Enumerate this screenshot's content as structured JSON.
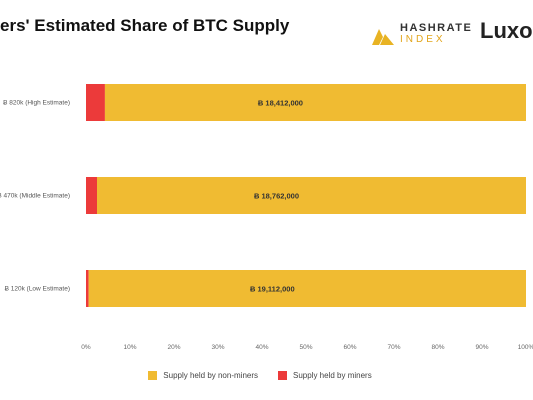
{
  "title": "ers' Estimated Share of BTC Supply",
  "logo": {
    "text_top": "HASHRATE",
    "text_bottom": "INDEX",
    "mark_color": "#e8b323"
  },
  "brand": "Luxo",
  "chart_data": {
    "type": "bar",
    "orientation": "horizontal",
    "stacked": true,
    "categories": [
      "Ƀ 820k (High Estimate)",
      "Ƀ 470k (Middle Estimate)",
      "Ƀ 120k (Low Estimate)"
    ],
    "series": [
      {
        "name": "Supply held by miners",
        "color": "#ec3a3a",
        "values": [
          4.3,
          2.5,
          0.6
        ]
      },
      {
        "name": "Supply held by non-miners",
        "color": "#f0bb32",
        "values": [
          95.7,
          97.5,
          99.4
        ]
      }
    ],
    "data_labels": [
      "Ƀ 18,412,000",
      "Ƀ 18,762,000",
      "Ƀ 19,112,000"
    ],
    "xlim": [
      0,
      100
    ],
    "xticks": [
      "0%",
      "10%",
      "20%",
      "30%",
      "40%",
      "50%",
      "60%",
      "70%",
      "80%",
      "90%",
      "100%"
    ],
    "grid": false,
    "legend_position": "bottom-center"
  },
  "legend": [
    {
      "label": "Supply held by non-miners",
      "color": "#f0bb32"
    },
    {
      "label": "Supply held by miners",
      "color": "#ec3a3a"
    }
  ]
}
